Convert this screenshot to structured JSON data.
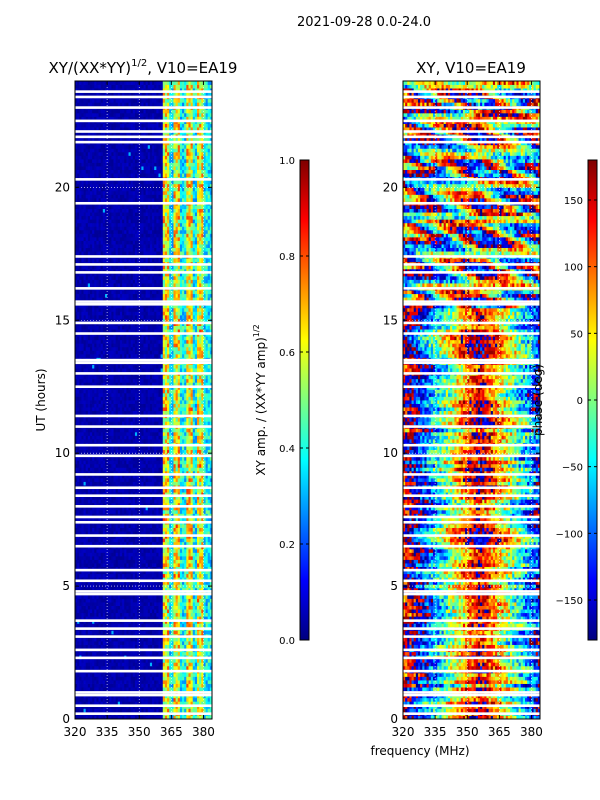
{
  "figure": {
    "suptitle": "2021-09-28 0.0-24.0",
    "xlabel": "frequency (MHz)"
  },
  "colors": {
    "jet": [
      "#00007f",
      "#0000ff",
      "#007fff",
      "#00ffff",
      "#7fff7f",
      "#ffff00",
      "#ff7f00",
      "#ff0000",
      "#7f0000"
    ],
    "gap": "#ffffff",
    "grid": "#ffffff"
  },
  "chart_data": [
    {
      "type": "heatmap",
      "title_main": "XY/(XX*YY)",
      "title_sup": "1/2",
      "title_tail": ", V10=EA19",
      "xlabel": "",
      "ylabel": "UT (hours)",
      "xlim": [
        320,
        384
      ],
      "ylim": [
        0,
        24
      ],
      "xticks": [
        "320",
        "335",
        "350",
        "365",
        "380"
      ],
      "xtick_values": [
        320,
        335,
        350,
        365,
        380
      ],
      "yticks": [
        "0",
        "5",
        "10",
        "15",
        "20"
      ],
      "ytick_values": [
        0,
        5,
        10,
        15,
        20
      ],
      "bright_channels_mhz": [
        [
          361,
          364
        ],
        [
          366,
          369
        ],
        [
          372,
          375
        ],
        [
          377,
          380
        ]
      ],
      "colorbar": {
        "label_main": "XY amp. / (XX*YY amp)",
        "label_sup": "1/2",
        "range": [
          0.0,
          1.0
        ],
        "ticks": [
          "0.0",
          "0.2",
          "0.4",
          "0.6",
          "0.8",
          "1.0"
        ],
        "tick_values": [
          0.0,
          0.2,
          0.4,
          0.6,
          0.8,
          1.0
        ]
      }
    },
    {
      "type": "heatmap",
      "title": "XY, V10=EA19",
      "xlabel": "",
      "ylabel": "",
      "xlim": [
        320,
        384
      ],
      "ylim": [
        0,
        24
      ],
      "xticks": [
        "320",
        "335",
        "350",
        "365",
        "380"
      ],
      "xtick_values": [
        320,
        335,
        350,
        365,
        380
      ],
      "yticks": [
        "0",
        "5",
        "10",
        "15",
        "20"
      ],
      "ytick_values": [
        0,
        5,
        10,
        15,
        20
      ],
      "phase_peak_mhz": 356,
      "colorbar": {
        "label": "phase (deg)",
        "range": [
          -180,
          180
        ],
        "ticks": [
          "−150",
          "−100",
          "−50",
          "0",
          "50",
          "100",
          "150"
        ],
        "tick_values": [
          -150,
          -100,
          -50,
          0,
          50,
          100,
          150
        ]
      }
    }
  ],
  "gap_hours": [
    0.2,
    0.5,
    0.9,
    1.0,
    1.8,
    2.3,
    2.6,
    3.1,
    3.4,
    3.7,
    4.7,
    4.8,
    5.2,
    5.6,
    6.5,
    6.9,
    7.4,
    7.6,
    8.0,
    8.4,
    8.7,
    9.2,
    9.9,
    10.3,
    11.0,
    11.4,
    12.5,
    13.0,
    13.4,
    13.5,
    14.5,
    14.9,
    15.6,
    15.7,
    16.2,
    16.8,
    17.1,
    17.4,
    19.4,
    20.3,
    21.7,
    21.9,
    22.1,
    22.5,
    23.0,
    23.4,
    23.6
  ]
}
